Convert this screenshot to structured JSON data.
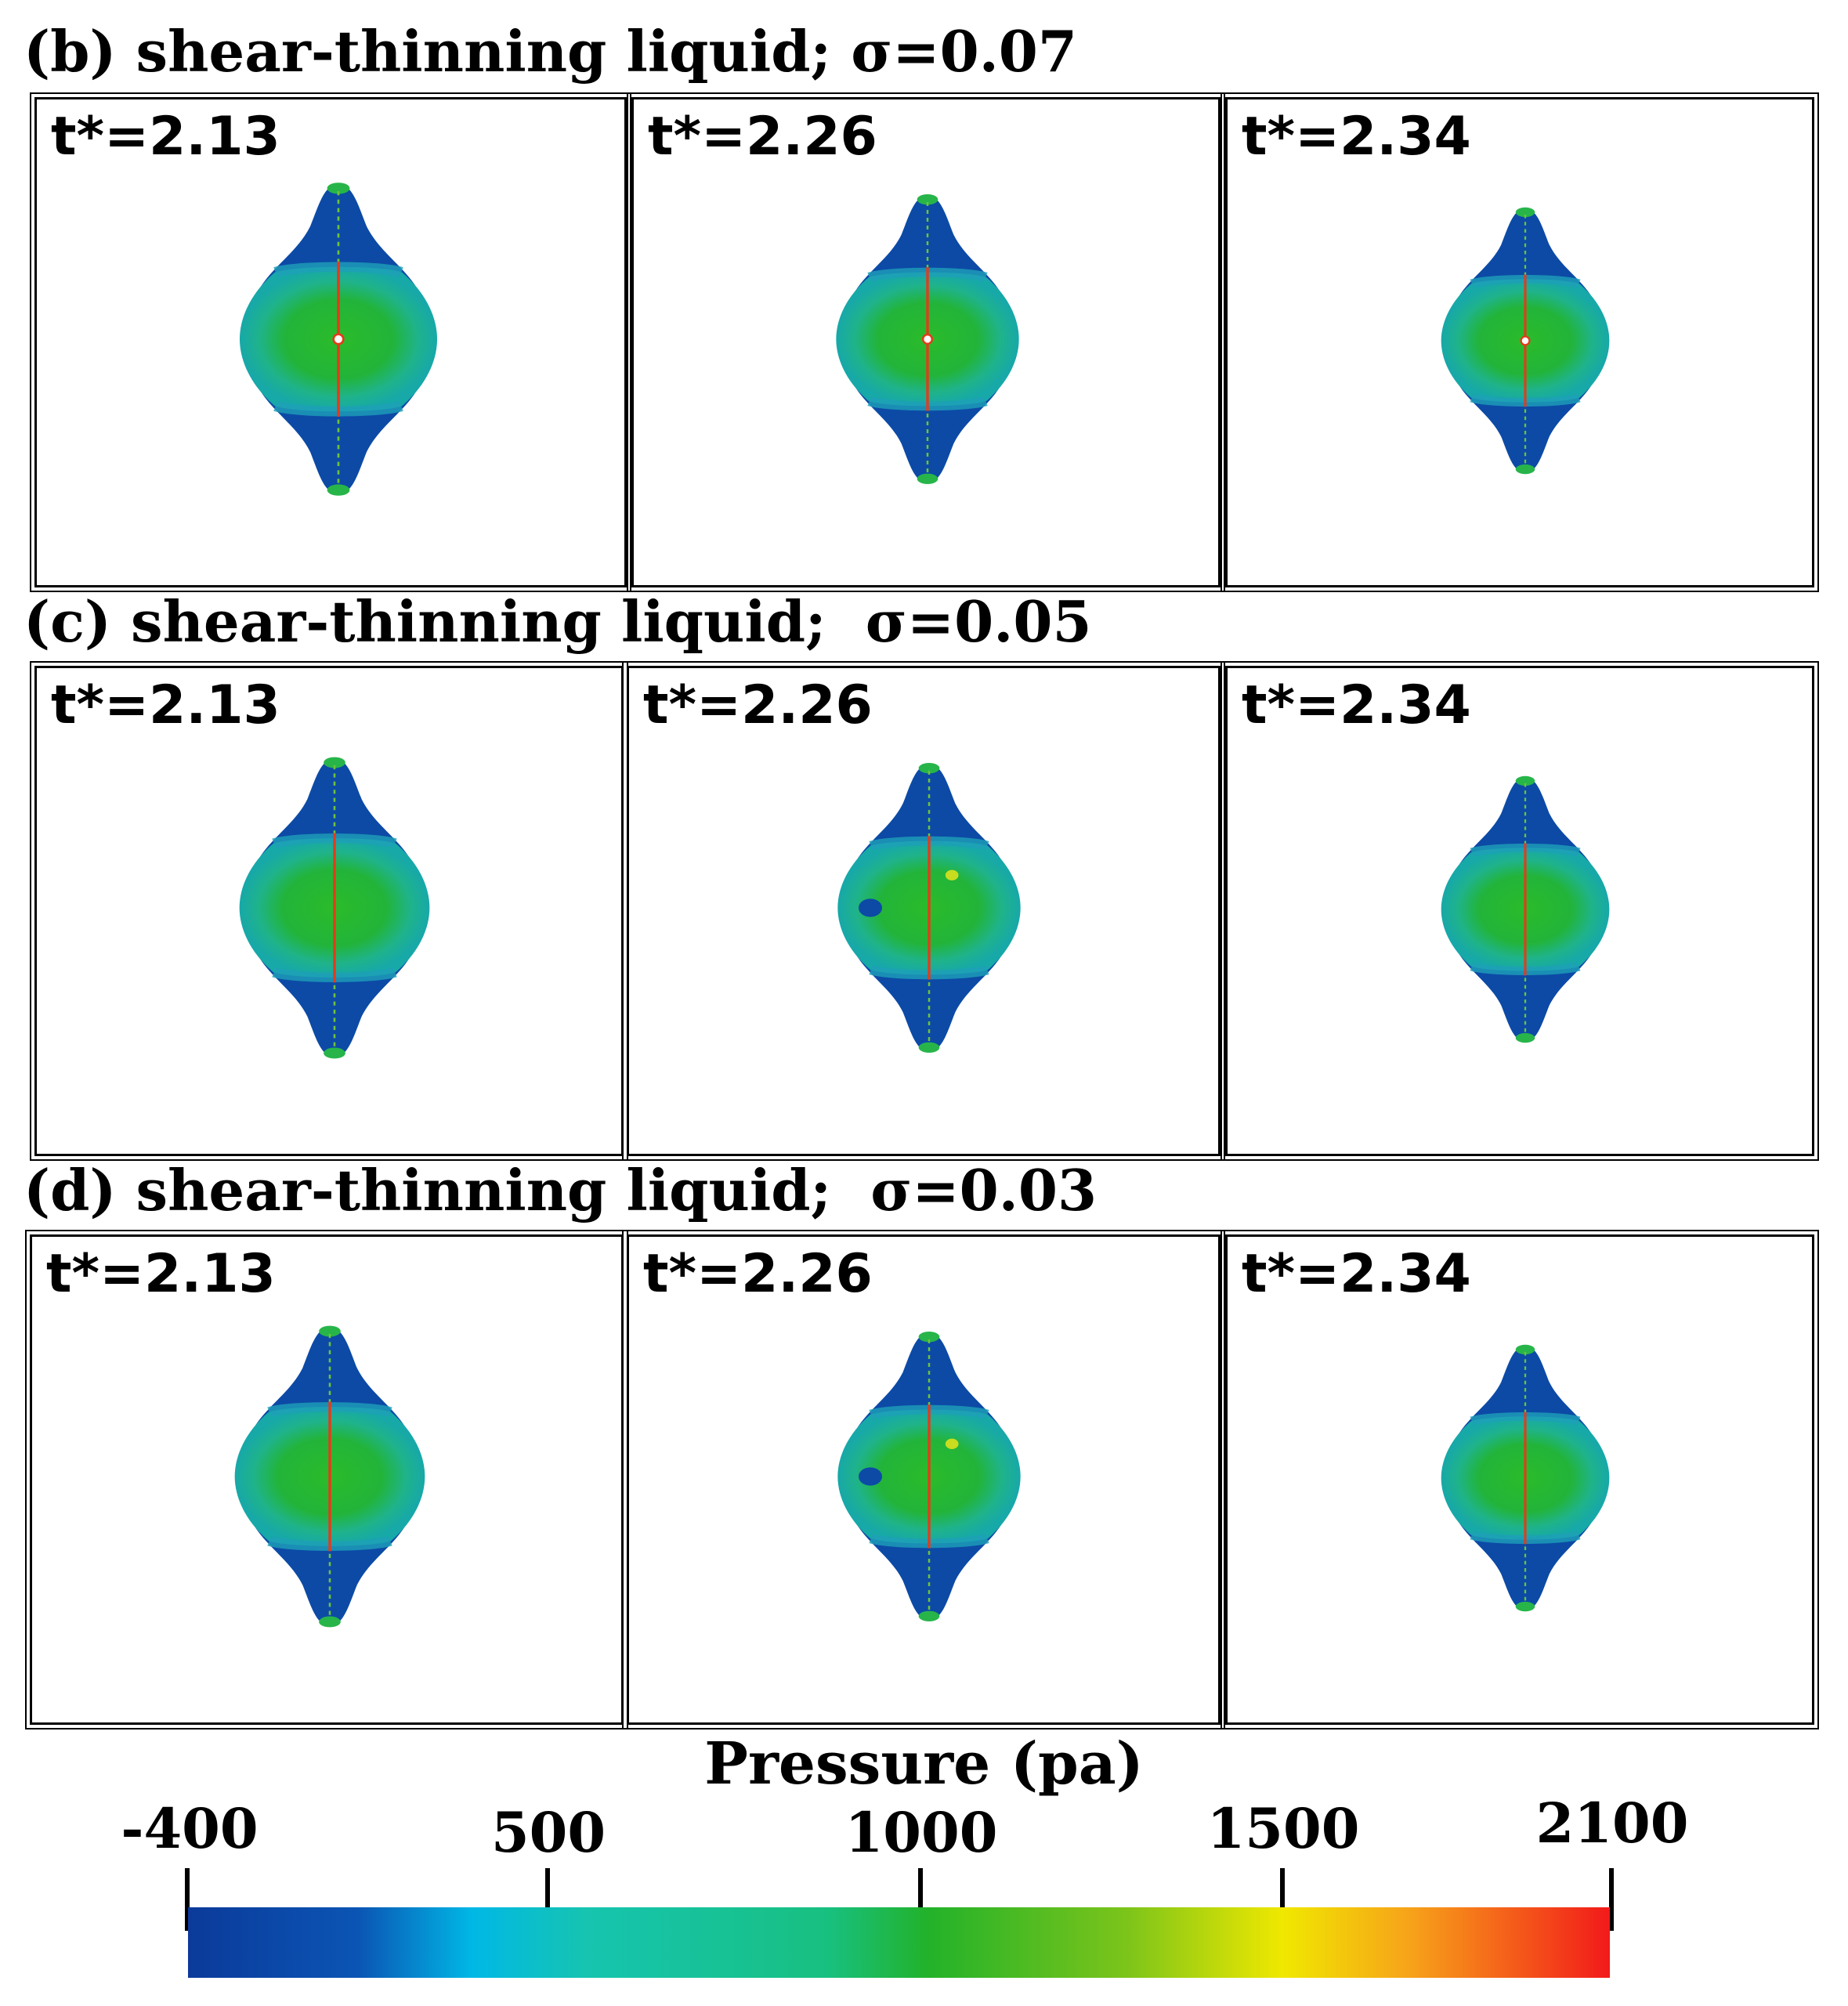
{
  "rows": [
    {
      "label": "(b) shear-thinning liquid; σ=0.07",
      "times": [
        "t*=2.13",
        "t*=2.26",
        "t*=2.34"
      ]
    },
    {
      "label": "(c) shear-thinning liquid;  σ=0.05",
      "times": [
        "t*=2.13",
        "t*=2.26",
        "t*=2.34"
      ]
    },
    {
      "label": "(d) shear-thinning liquid;  σ=0.03",
      "times": [
        "t*=2.13",
        "t*=2.26",
        "t*=2.34"
      ]
    }
  ],
  "colorbar": {
    "title": "Pressure (pa)",
    "ticks": [
      "-400",
      "500",
      "1000",
      "1500",
      "2100"
    ],
    "colors": {
      "low": "#0b3a9a",
      "cyan": "#00b8e6",
      "green": "#22b22a",
      "yellow": "#f0e800",
      "high": "#f21a1a"
    }
  }
}
